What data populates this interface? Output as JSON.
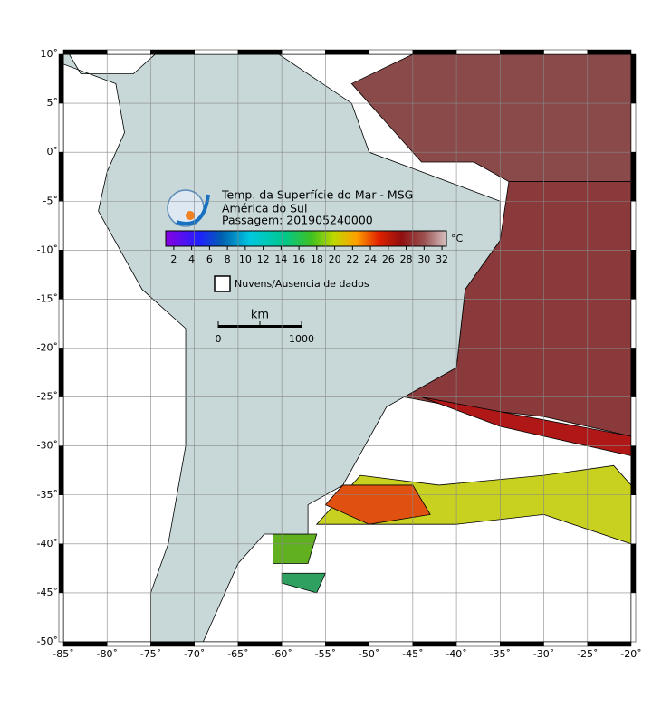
{
  "header": {
    "title": "Temp. da Superfície do Mar - MSG",
    "region": "América do Sul",
    "pass": "Passagem: 201905240000"
  },
  "map": {
    "xlim": [
      -85,
      -20
    ],
    "ylim": [
      -50,
      10
    ],
    "xticks": [
      {
        "value": -85,
        "label": "-85˚"
      },
      {
        "value": -80,
        "label": "-80˚"
      },
      {
        "value": -75,
        "label": "-75˚"
      },
      {
        "value": -70,
        "label": "-70˚"
      },
      {
        "value": -65,
        "label": "-65˚"
      },
      {
        "value": -60,
        "label": "-60˚"
      },
      {
        "value": -55,
        "label": "-55˚"
      },
      {
        "value": -50,
        "label": "-50˚"
      },
      {
        "value": -45,
        "label": "-45˚"
      },
      {
        "value": -40,
        "label": "-40˚"
      },
      {
        "value": -35,
        "label": "-35˚"
      },
      {
        "value": -30,
        "label": "-30˚"
      },
      {
        "value": -25,
        "label": "-25˚"
      },
      {
        "value": -20,
        "label": "-20˚"
      }
    ],
    "yticks": [
      {
        "value": 10,
        "label": "10˚"
      },
      {
        "value": 5,
        "label": "5˚"
      },
      {
        "value": 0,
        "label": "0˚"
      },
      {
        "value": -5,
        "label": "-5˚"
      },
      {
        "value": -10,
        "label": "-10˚"
      },
      {
        "value": -15,
        "label": "-15˚"
      },
      {
        "value": -20,
        "label": "-20˚"
      },
      {
        "value": -25,
        "label": "-25˚"
      },
      {
        "value": -30,
        "label": "-30˚"
      },
      {
        "value": -35,
        "label": "-35˚"
      },
      {
        "value": -40,
        "label": "-40˚"
      },
      {
        "value": -45,
        "label": "-45˚"
      },
      {
        "value": -50,
        "label": "-50˚"
      }
    ]
  },
  "colorbar": {
    "lim": [
      1.1,
      32.5
    ],
    "ticks": [
      2,
      4,
      6,
      8,
      10,
      12,
      14,
      16,
      18,
      20,
      22,
      24,
      26,
      28,
      30,
      32
    ],
    "unit": "°C"
  },
  "legend": {
    "label": "Nuvens/Ausencia de dados"
  },
  "scale_bar": {
    "unit": "km",
    "ticks": [
      0,
      1000
    ]
  }
}
